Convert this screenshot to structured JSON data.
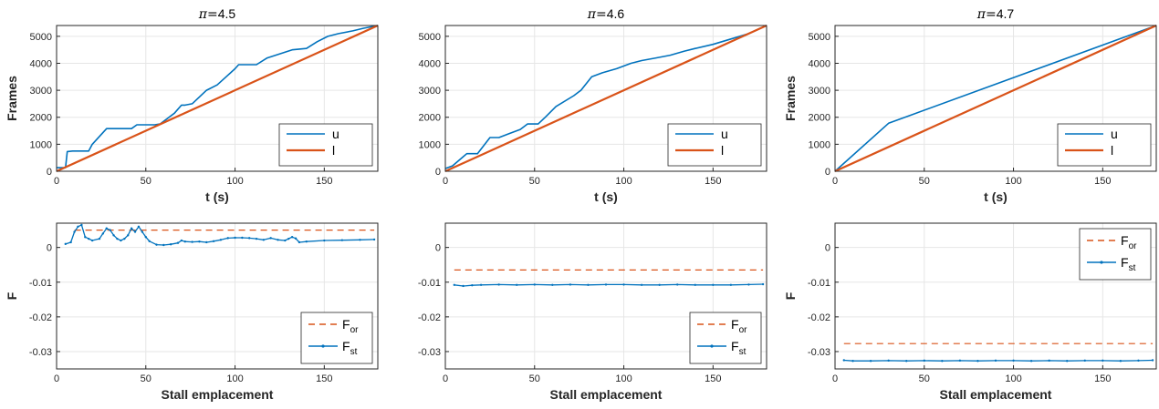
{
  "colors": {
    "u": "#0072BD",
    "l": "#D95319",
    "grid": "#e6e6e6",
    "axis": "#262626"
  },
  "chart_data": [
    {
      "type": "line",
      "title_prefix": "π=",
      "title_value": "4.5",
      "xlabel": "t (s)",
      "ylabel": "Frames",
      "xlim": [
        0,
        180
      ],
      "ylim": [
        0,
        5400
      ],
      "xticks": [
        "0",
        "50",
        "100",
        "150"
      ],
      "yticks": [
        "0",
        "1000",
        "2000",
        "3000",
        "4000",
        "5000"
      ],
      "legend": [
        "u",
        "l"
      ],
      "legend_position": "bottom-right",
      "grid": true,
      "series": [
        {
          "name": "u",
          "x": [
            0,
            5,
            6,
            9,
            18,
            20,
            28,
            32,
            42,
            45,
            55,
            58,
            66,
            70,
            72,
            76,
            84,
            90,
            95,
            100,
            102,
            112,
            118,
            132,
            140,
            146,
            152,
            158,
            166,
            172,
            180
          ],
          "y": [
            130,
            130,
            730,
            750,
            750,
            1000,
            1580,
            1580,
            1580,
            1720,
            1720,
            1750,
            2150,
            2450,
            2450,
            2500,
            3000,
            3200,
            3500,
            3800,
            3950,
            3950,
            4200,
            4500,
            4550,
            4800,
            5000,
            5100,
            5200,
            5300,
            5400
          ]
        },
        {
          "name": "l",
          "x": [
            0,
            180
          ],
          "y": [
            0,
            5400
          ]
        }
      ]
    },
    {
      "type": "line",
      "title_prefix": "π=",
      "title_value": "4.6",
      "xlabel": "t (s)",
      "ylabel": "",
      "xlim": [
        0,
        180
      ],
      "ylim": [
        0,
        5400
      ],
      "xticks": [
        "0",
        "50",
        "100",
        "150"
      ],
      "yticks": [
        "0",
        "1000",
        "2000",
        "3000",
        "4000",
        "5000"
      ],
      "legend": [
        "u",
        "l"
      ],
      "legend_position": "bottom-right",
      "grid": true,
      "series": [
        {
          "name": "u",
          "x": [
            0,
            4,
            12,
            14,
            18,
            25,
            30,
            36,
            42,
            46,
            52,
            56,
            62,
            72,
            76,
            82,
            88,
            96,
            104,
            110,
            118,
            126,
            134,
            140,
            150,
            160,
            170,
            180
          ],
          "y": [
            100,
            200,
            650,
            650,
            650,
            1250,
            1250,
            1400,
            1550,
            1750,
            1750,
            2000,
            2400,
            2800,
            3000,
            3500,
            3650,
            3800,
            4000,
            4100,
            4200,
            4300,
            4450,
            4550,
            4700,
            4900,
            5100,
            5400
          ]
        },
        {
          "name": "l",
          "x": [
            0,
            180
          ],
          "y": [
            0,
            5400
          ]
        }
      ]
    },
    {
      "type": "line",
      "title_prefix": "π=",
      "title_value": "4.7",
      "xlabel": "t (s)",
      "ylabel": "Frames",
      "xlim": [
        0,
        180
      ],
      "ylim": [
        0,
        5400
      ],
      "xticks": [
        "0",
        "50",
        "100",
        "150"
      ],
      "yticks": [
        "0",
        "1000",
        "2000",
        "3000",
        "4000",
        "5000"
      ],
      "legend": [
        "u",
        "l"
      ],
      "legend_position": "bottom-right",
      "grid": true,
      "series": [
        {
          "name": "u",
          "x": [
            0,
            30,
            180
          ],
          "y": [
            0,
            1780,
            5400
          ]
        },
        {
          "name": "l",
          "x": [
            0,
            180
          ],
          "y": [
            0,
            5400
          ]
        }
      ]
    },
    {
      "type": "line",
      "xlabel": "Stall emplacement",
      "ylabel": "F",
      "xlim": [
        0,
        180
      ],
      "ylim": [
        -0.035,
        0.007
      ],
      "xticks": [
        "0",
        "50",
        "100",
        "150"
      ],
      "yticks": [
        "0",
        "-0.01",
        "-0.02",
        "-0.03"
      ],
      "legend": [
        {
          "base": "F",
          "sub": "or"
        },
        {
          "base": "F",
          "sub": "st"
        }
      ],
      "legend_position": "bottom-right",
      "grid": true,
      "series": [
        {
          "name": "F_or",
          "x": [
            10,
            178
          ],
          "y": [
            0.005,
            0.005
          ]
        },
        {
          "name": "F_st",
          "x": [
            5,
            8,
            10,
            12,
            14,
            16,
            18,
            20,
            24,
            26,
            28,
            30,
            32,
            34,
            36,
            38,
            40,
            42,
            44,
            46,
            48,
            50,
            52,
            56,
            60,
            64,
            68,
            70,
            72,
            76,
            80,
            84,
            88,
            92,
            96,
            100,
            104,
            108,
            112,
            116,
            120,
            124,
            128,
            130,
            132,
            134,
            136,
            140,
            150,
            160,
            170,
            178
          ],
          "y": [
            0.001,
            0.0015,
            0.0045,
            0.006,
            0.0065,
            0.003,
            0.0025,
            0.002,
            0.0025,
            0.004,
            0.0055,
            0.005,
            0.0035,
            0.0025,
            0.002,
            0.0025,
            0.0035,
            0.0055,
            0.0045,
            0.006,
            0.0045,
            0.003,
            0.0018,
            0.0008,
            0.0007,
            0.0009,
            0.0013,
            0.002,
            0.0017,
            0.0016,
            0.0017,
            0.0015,
            0.0018,
            0.0022,
            0.0027,
            0.0028,
            0.0028,
            0.0027,
            0.0025,
            0.0022,
            0.0027,
            0.0022,
            0.002,
            0.0025,
            0.003,
            0.0026,
            0.0015,
            0.0017,
            0.002,
            0.0021,
            0.0022,
            0.0023
          ]
        }
      ]
    },
    {
      "type": "line",
      "xlabel": "Stall emplacement",
      "ylabel": "",
      "xlim": [
        0,
        180
      ],
      "ylim": [
        -0.035,
        0.007
      ],
      "xticks": [
        "0",
        "50",
        "100",
        "150"
      ],
      "yticks": [
        "0",
        "-0.01",
        "-0.02",
        "-0.03"
      ],
      "legend": [
        {
          "base": "F",
          "sub": "or"
        },
        {
          "base": "F",
          "sub": "st"
        }
      ],
      "legend_position": "bottom-right",
      "grid": true,
      "series": [
        {
          "name": "F_or",
          "x": [
            5,
            178
          ],
          "y": [
            -0.0065,
            -0.0065
          ]
        },
        {
          "name": "F_st",
          "x": [
            5,
            10,
            15,
            20,
            30,
            40,
            50,
            60,
            70,
            80,
            90,
            100,
            110,
            120,
            130,
            140,
            150,
            160,
            170,
            178
          ],
          "y": [
            -0.0108,
            -0.0111,
            -0.0109,
            -0.0108,
            -0.0107,
            -0.0108,
            -0.0107,
            -0.0108,
            -0.0107,
            -0.0108,
            -0.0107,
            -0.0107,
            -0.0108,
            -0.0108,
            -0.0107,
            -0.0108,
            -0.0108,
            -0.0108,
            -0.0107,
            -0.0106
          ]
        }
      ]
    },
    {
      "type": "line",
      "xlabel": "Stall emplacement",
      "ylabel": "F",
      "xlim": [
        0,
        180
      ],
      "ylim": [
        -0.035,
        0.007
      ],
      "xticks": [
        "0",
        "50",
        "100",
        "150"
      ],
      "yticks": [
        "0",
        "-0.01",
        "-0.02",
        "-0.03"
      ],
      "legend": [
        {
          "base": "F",
          "sub": "or"
        },
        {
          "base": "F",
          "sub": "st"
        }
      ],
      "legend_position": "top-right",
      "grid": true,
      "series": [
        {
          "name": "F_or",
          "x": [
            5,
            178
          ],
          "y": [
            -0.0277,
            -0.0277
          ]
        },
        {
          "name": "F_st",
          "x": [
            5,
            10,
            20,
            30,
            40,
            50,
            60,
            70,
            80,
            90,
            100,
            110,
            120,
            130,
            140,
            150,
            160,
            170,
            178
          ],
          "y": [
            -0.0325,
            -0.0327,
            -0.0327,
            -0.0326,
            -0.0327,
            -0.0326,
            -0.0327,
            -0.0326,
            -0.0327,
            -0.0326,
            -0.0326,
            -0.0327,
            -0.0326,
            -0.0327,
            -0.0326,
            -0.0326,
            -0.0327,
            -0.0326,
            -0.0325
          ]
        }
      ]
    }
  ]
}
